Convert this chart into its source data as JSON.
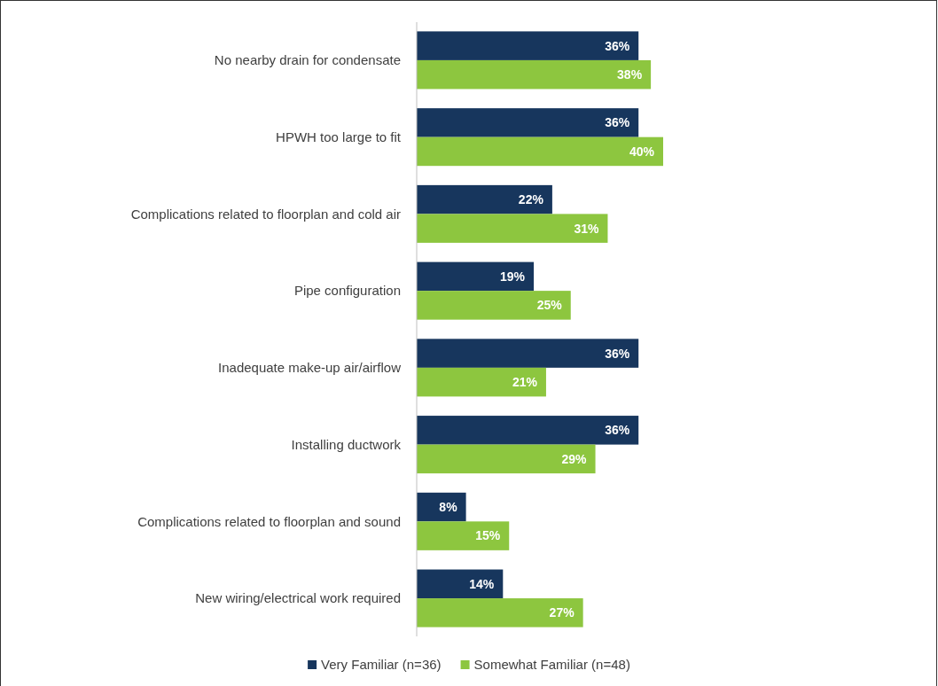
{
  "chart_data": {
    "type": "bar",
    "orientation": "horizontal",
    "legend": "bottom",
    "categories": [
      "No nearby drain for condensate",
      "HPWH too large to fit",
      "Complications related to floorplan and cold air",
      "Pipe configuration",
      "Inadequate make-up air/airflow",
      "Installing ductwork",
      "Complications related to floorplan and sound",
      "New wiring/electrical work required"
    ],
    "series": [
      {
        "name": "Very Familiar (n=36)",
        "color": "#17365d",
        "values": [
          36,
          36,
          22,
          19,
          36,
          36,
          8,
          14
        ],
        "value_labels": [
          "36%",
          "36%",
          "22%",
          "19%",
          "36%",
          "36%",
          "8%",
          "14%"
        ]
      },
      {
        "name": "Somewhat Familiar (n=48)",
        "color": "#8dc63f",
        "values": [
          38,
          40,
          31,
          25,
          21,
          29,
          15,
          27
        ],
        "value_labels": [
          "38%",
          "40%",
          "31%",
          "25%",
          "21%",
          "29%",
          "15%",
          "27%"
        ]
      }
    ]
  }
}
